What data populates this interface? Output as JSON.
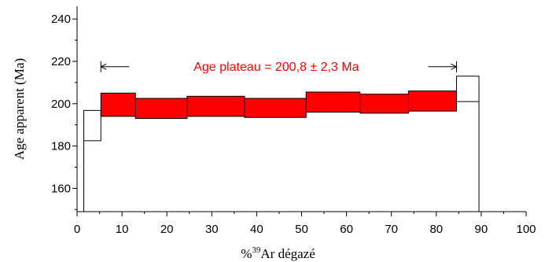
{
  "chart_data": {
    "type": "step",
    "title": "",
    "xlabel_prefix": "%",
    "xlabel_sup": "39",
    "xlabel_suffix": "Ar dégazé",
    "ylabel": "Age apparent (Ma)",
    "xlim": [
      0,
      100
    ],
    "ylim": [
      149,
      246
    ],
    "x_ticks": [
      0,
      10,
      20,
      30,
      40,
      50,
      60,
      70,
      80,
      90,
      100
    ],
    "y_ticks": [
      160,
      180,
      200,
      220,
      240
    ],
    "grid": false,
    "steps": [
      {
        "x0": 1.5,
        "x1": 5.3,
        "low": 182.5,
        "high": 196.8,
        "in_plateau": false
      },
      {
        "x0": 5.3,
        "x1": 13.0,
        "low": 194.0,
        "high": 205.0,
        "in_plateau": true
      },
      {
        "x0": 13.0,
        "x1": 24.5,
        "low": 193.0,
        "high": 202.5,
        "in_plateau": true
      },
      {
        "x0": 24.5,
        "x1": 37.3,
        "low": 194.0,
        "high": 203.5,
        "in_plateau": true
      },
      {
        "x0": 37.3,
        "x1": 51.0,
        "low": 193.5,
        "high": 202.5,
        "in_plateau": true
      },
      {
        "x0": 51.0,
        "x1": 63.0,
        "low": 196.0,
        "high": 205.5,
        "in_plateau": true
      },
      {
        "x0": 63.0,
        "x1": 73.8,
        "low": 195.5,
        "high": 204.5,
        "in_plateau": true
      },
      {
        "x0": 73.8,
        "x1": 84.5,
        "low": 196.5,
        "high": 206.0,
        "in_plateau": true
      },
      {
        "x0": 84.5,
        "x1": 89.5,
        "low": 201.0,
        "high": 213.0,
        "in_plateau": false
      }
    ],
    "plateau": {
      "label": "Age plateau =  200,8 ± 2,3 Ma",
      "x_start": 5.3,
      "x_end": 84.5,
      "arrow_y": 213,
      "color": "#ff0000"
    },
    "colors": {
      "plateau_fill": "#ff0000",
      "outline": "#000000",
      "axis": "#000000"
    }
  }
}
